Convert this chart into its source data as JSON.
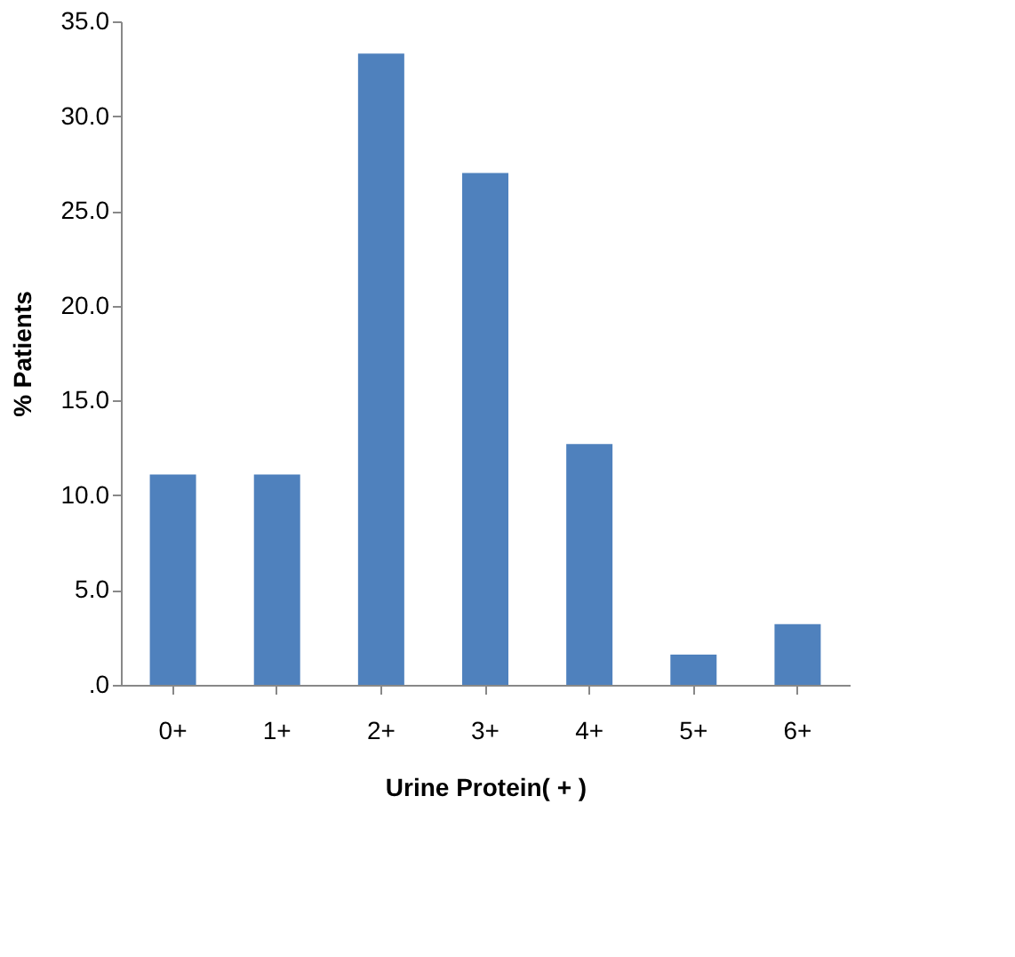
{
  "chart_data": {
    "type": "bar",
    "xlabel": "Urine Protein(   + )",
    "ylabel": "% Patients",
    "categories": [
      "0+",
      "1+",
      "2+",
      "3+",
      "4+",
      "5+",
      "6+"
    ],
    "series": [
      {
        "color": "#4f81bd",
        "values": [
          11.1,
          11.1,
          33.3,
          27.0,
          12.7,
          1.6,
          3.2
        ]
      }
    ],
    "ylim": [
      0,
      35
    ],
    "yticks": [
      {
        "value": 0,
        "label": ".0"
      },
      {
        "value": 5,
        "label": "5.0"
      },
      {
        "value": 10,
        "label": "10.0"
      },
      {
        "value": 15,
        "label": "15.0"
      },
      {
        "value": 20,
        "label": "20.0"
      },
      {
        "value": 25,
        "label": "25.0"
      },
      {
        "value": 30,
        "label": "30.0"
      },
      {
        "value": 35,
        "label": "35.0"
      }
    ],
    "grid": false
  }
}
